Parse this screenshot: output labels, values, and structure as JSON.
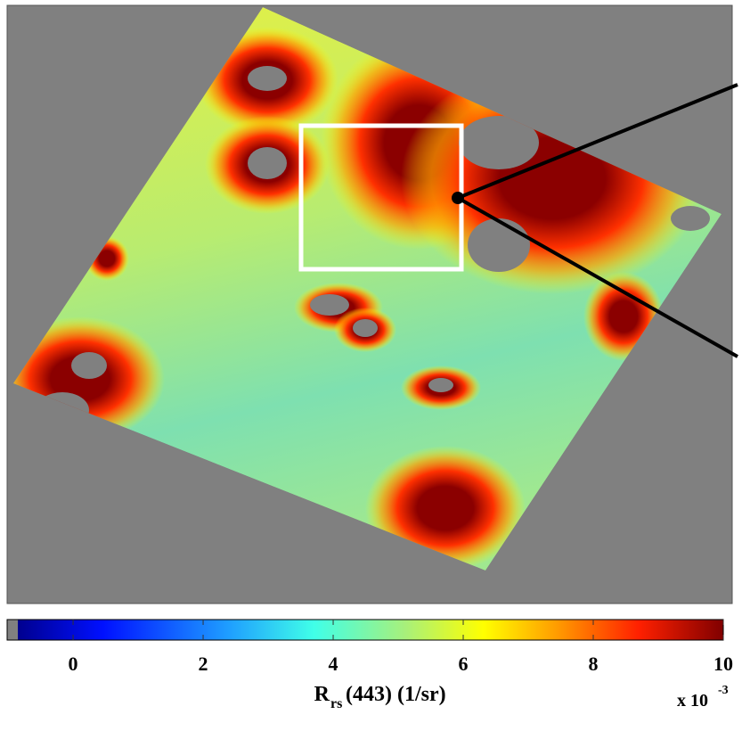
{
  "colorbar": {
    "lim": [
      -0.85,
      10
    ],
    "ticks": [
      0,
      2,
      4,
      6,
      8,
      10
    ],
    "label": {
      "symbol": "R",
      "subscript": "rs",
      "rest": "(443) (1/sr)"
    },
    "multiplier": {
      "base": "x 10",
      "exponent": "-3"
    }
  }
}
